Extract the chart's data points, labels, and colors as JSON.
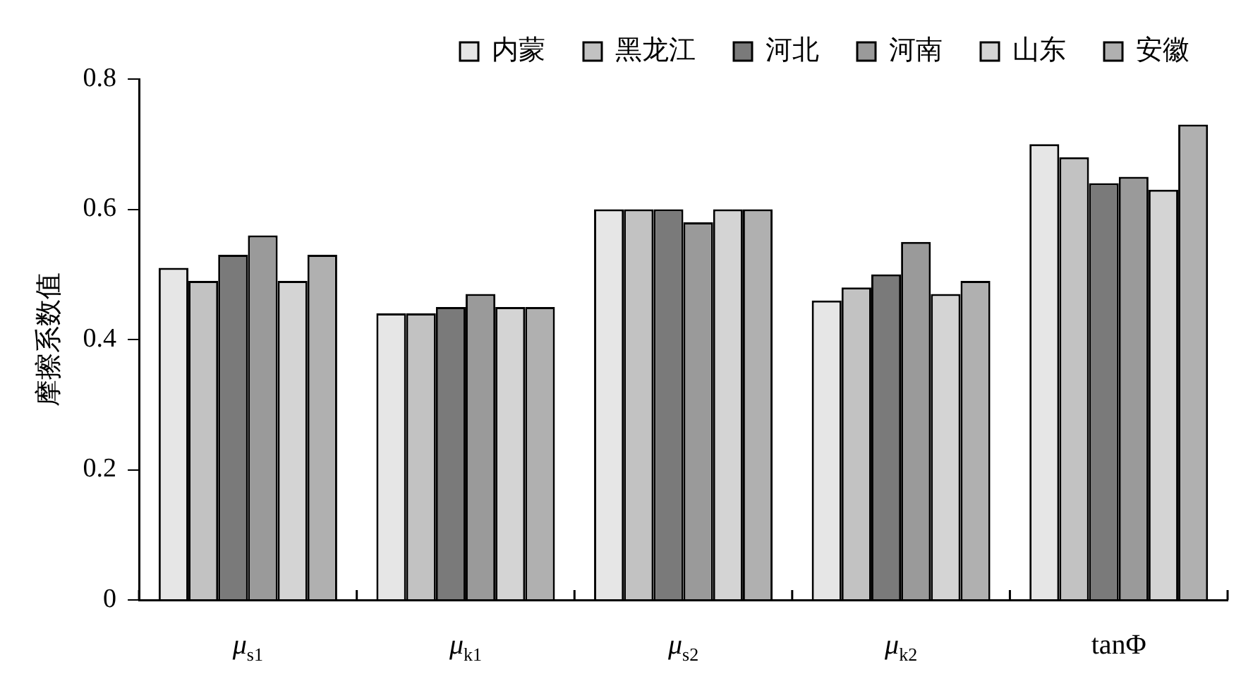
{
  "chart_data": {
    "type": "bar",
    "ylabel": "摩擦系数值",
    "categories": [
      "μ$_{s1}$",
      "μ$_{k1}$",
      "μ$_{s2}$",
      "μ$_{k2}$",
      "tanΦ"
    ],
    "series": [
      {
        "name": "内蒙",
        "color": "#e6e6e6",
        "values": [
          0.51,
          0.44,
          0.6,
          0.46,
          0.7
        ]
      },
      {
        "name": "黑龙江",
        "color": "#c2c2c2",
        "values": [
          0.49,
          0.44,
          0.6,
          0.48,
          0.68
        ]
      },
      {
        "name": "河北",
        "color": "#7a7a7a",
        "values": [
          0.53,
          0.45,
          0.6,
          0.5,
          0.64
        ]
      },
      {
        "name": "河南",
        "color": "#9a9a9a",
        "values": [
          0.56,
          0.47,
          0.58,
          0.55,
          0.65
        ]
      },
      {
        "name": "山东",
        "color": "#d4d4d4",
        "values": [
          0.49,
          0.45,
          0.6,
          0.47,
          0.63
        ]
      },
      {
        "name": "安徽",
        "color": "#b0b0b0",
        "values": [
          0.53,
          0.45,
          0.6,
          0.49,
          0.73
        ]
      }
    ],
    "ylim": [
      0,
      0.8
    ],
    "yticks": [
      0,
      0.2,
      0.4,
      0.6,
      0.8
    ],
    "grid": false,
    "legend": "top"
  }
}
